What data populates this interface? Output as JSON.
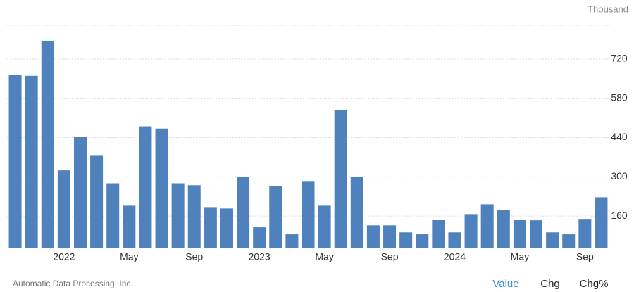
{
  "chart_data": {
    "type": "bar",
    "unit": "Thousand",
    "source": "Automatic Data Processing, Inc.",
    "categories": [
      null,
      null,
      null,
      "2022",
      null,
      null,
      null,
      "May",
      null,
      null,
      null,
      "Sep",
      null,
      null,
      null,
      "2023",
      null,
      null,
      null,
      "May",
      null,
      null,
      null,
      "Sep",
      null,
      null,
      null,
      "2024",
      null,
      null,
      null,
      "May",
      null,
      null,
      null,
      "Sep",
      null
    ],
    "values": [
      662,
      660,
      785,
      323,
      442,
      375,
      277,
      197,
      480,
      472,
      277,
      270,
      192,
      187,
      300,
      120,
      267,
      95,
      285,
      197,
      537,
      300,
      127,
      127,
      102,
      95,
      147,
      102,
      167,
      202,
      182,
      147,
      145,
      102,
      95,
      150,
      227
    ],
    "color": "#4f81bd",
    "ylim": [
      45,
      840
    ],
    "yticks": [
      160,
      300,
      440,
      580,
      720
    ],
    "grid": true
  },
  "controls": [
    "Value",
    "Chg",
    "Chg%"
  ]
}
